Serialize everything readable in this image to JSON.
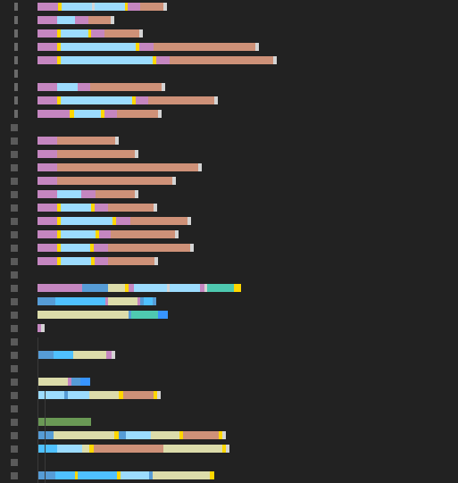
{
  "colors": {
    "background": "#222222",
    "gutter": "#6a6a6a",
    "keyword": "#c586c0",
    "variable": "#9cdcfe",
    "bracket": "#ffd700",
    "string": "#ce9178",
    "punctuation": "#d4d4d4",
    "type": "#4ec9b0",
    "storage": "#569cd6",
    "constant": "#4fc1ff",
    "function": "#dcdcaa",
    "comment": "#6a9955",
    "link": "#3794ff"
  },
  "rows": [
    {
      "marker": "bar",
      "segs": [
        [
          "keyword",
          23
        ],
        [
          "bracket",
          4
        ],
        [
          "variable",
          34
        ],
        [
          "punctuation",
          3
        ],
        [
          "variable",
          34
        ],
        [
          "bracket",
          3
        ],
        [
          "keyword",
          14
        ],
        [
          "string",
          26
        ],
        [
          "punctuation",
          4
        ]
      ]
    },
    {
      "marker": "bar",
      "segs": [
        [
          "keyword",
          22
        ],
        [
          "variable",
          20
        ],
        [
          "keyword",
          15
        ],
        [
          "string",
          25
        ],
        [
          "punctuation",
          4
        ]
      ]
    },
    {
      "marker": "bar",
      "segs": [
        [
          "keyword",
          22
        ],
        [
          "bracket",
          4
        ],
        [
          "variable",
          31
        ],
        [
          "bracket",
          3
        ],
        [
          "keyword",
          15
        ],
        [
          "string",
          39
        ],
        [
          "punctuation",
          4
        ]
      ]
    },
    {
      "marker": "bar",
      "segs": [
        [
          "keyword",
          22
        ],
        [
          "bracket",
          4
        ],
        [
          "variable",
          84
        ],
        [
          "bracket",
          4
        ],
        [
          "keyword",
          16
        ],
        [
          "string",
          114
        ],
        [
          "punctuation",
          4
        ]
      ]
    },
    {
      "marker": "bar",
      "segs": [
        [
          "keyword",
          22
        ],
        [
          "bracket",
          4
        ],
        [
          "variable",
          103
        ],
        [
          "bracket",
          4
        ],
        [
          "keyword",
          15
        ],
        [
          "string",
          116
        ],
        [
          "punctuation",
          4
        ]
      ]
    },
    {
      "marker": "bar",
      "segs": []
    },
    {
      "marker": "bar",
      "segs": [
        [
          "keyword",
          22
        ],
        [
          "variable",
          23
        ],
        [
          "keyword",
          14
        ],
        [
          "string",
          80
        ],
        [
          "punctuation",
          4
        ]
      ]
    },
    {
      "marker": "bar",
      "segs": [
        [
          "keyword",
          22
        ],
        [
          "bracket",
          4
        ],
        [
          "variable",
          80
        ],
        [
          "bracket",
          4
        ],
        [
          "keyword",
          14
        ],
        [
          "string",
          74
        ],
        [
          "punctuation",
          4
        ]
      ]
    },
    {
      "marker": "bar",
      "segs": [
        [
          "keyword",
          36
        ],
        [
          "bracket",
          5
        ],
        [
          "variable",
          30
        ],
        [
          "bracket",
          4
        ],
        [
          "keyword",
          14
        ],
        [
          "string",
          46
        ],
        [
          "punctuation",
          4
        ]
      ]
    },
    {
      "marker": "box",
      "segs": []
    },
    {
      "marker": "box",
      "segs": [
        [
          "keyword",
          22
        ],
        [
          "string",
          65
        ],
        [
          "punctuation",
          4
        ]
      ]
    },
    {
      "marker": "box",
      "segs": [
        [
          "keyword",
          22
        ],
        [
          "string",
          87
        ],
        [
          "punctuation",
          4
        ]
      ]
    },
    {
      "marker": "box",
      "segs": [
        [
          "keyword",
          22
        ],
        [
          "string",
          158
        ],
        [
          "punctuation",
          4
        ]
      ]
    },
    {
      "marker": "box",
      "segs": [
        [
          "keyword",
          22
        ],
        [
          "string",
          129
        ],
        [
          "punctuation",
          4
        ]
      ]
    },
    {
      "marker": "box",
      "segs": [
        [
          "keyword",
          22
        ],
        [
          "variable",
          27
        ],
        [
          "keyword",
          16
        ],
        [
          "string",
          44
        ],
        [
          "punctuation",
          4
        ]
      ]
    },
    {
      "marker": "box",
      "segs": [
        [
          "keyword",
          22
        ],
        [
          "bracket",
          4
        ],
        [
          "variable",
          34
        ],
        [
          "bracket",
          4
        ],
        [
          "keyword",
          15
        ],
        [
          "string",
          51
        ],
        [
          "punctuation",
          4
        ]
      ]
    },
    {
      "marker": "box",
      "segs": [
        [
          "keyword",
          22
        ],
        [
          "bracket",
          4
        ],
        [
          "variable",
          58
        ],
        [
          "bracket",
          4
        ],
        [
          "keyword",
          16
        ],
        [
          "string",
          64
        ],
        [
          "punctuation",
          4
        ]
      ]
    },
    {
      "marker": "box",
      "segs": [
        [
          "keyword",
          22
        ],
        [
          "bracket",
          4
        ],
        [
          "variable",
          39
        ],
        [
          "bracket",
          4
        ],
        [
          "keyword",
          13
        ],
        [
          "string",
          72
        ],
        [
          "punctuation",
          4
        ]
      ]
    },
    {
      "marker": "box",
      "segs": [
        [
          "keyword",
          22
        ],
        [
          "bracket",
          4
        ],
        [
          "variable",
          33
        ],
        [
          "bracket",
          4
        ],
        [
          "keyword",
          16
        ],
        [
          "string",
          92
        ],
        [
          "punctuation",
          4
        ]
      ]
    },
    {
      "marker": "box",
      "segs": [
        [
          "keyword",
          22
        ],
        [
          "bracket",
          4
        ],
        [
          "variable",
          34
        ],
        [
          "bracket",
          4
        ],
        [
          "keyword",
          15
        ],
        [
          "string",
          52
        ],
        [
          "punctuation",
          4
        ]
      ]
    },
    {
      "marker": "box",
      "segs": []
    },
    {
      "marker": "box",
      "segs": [
        [
          "keyword",
          50
        ],
        [
          "storage",
          29
        ],
        [
          "function",
          19
        ],
        [
          "bracket",
          4
        ],
        [
          "keyword",
          6
        ],
        [
          "variable",
          37
        ],
        [
          "punctuation",
          3
        ],
        [
          "variable",
          34
        ],
        [
          "keyword",
          5
        ],
        [
          "punctuation",
          3
        ],
        [
          "type",
          30
        ],
        [
          "bracket",
          8
        ]
      ]
    },
    {
      "marker": "box",
      "segs": [
        [
          "storage",
          20
        ],
        [
          "constant",
          56
        ],
        [
          "keyword",
          3
        ],
        [
          "function",
          33
        ],
        [
          "keyword",
          3
        ],
        [
          "storage",
          4
        ],
        [
          "constant",
          10
        ],
        [
          "storage",
          4
        ]
      ]
    },
    {
      "marker": "box",
      "segs": [
        [
          "function",
          102
        ],
        [
          "storage",
          3
        ],
        [
          "type",
          30
        ],
        [
          "link",
          11
        ]
      ]
    },
    {
      "marker": "box",
      "segs": [
        [
          "keyword",
          4
        ],
        [
          "punctuation",
          4
        ]
      ]
    },
    {
      "marker": "box",
      "segs": []
    },
    {
      "marker": "box",
      "segs": [
        [
          "storage",
          18
        ],
        [
          "constant",
          22
        ],
        [
          "function",
          37
        ],
        [
          "keyword",
          6
        ],
        [
          "punctuation",
          4
        ]
      ]
    },
    {
      "marker": "box",
      "segs": []
    },
    {
      "marker": "box",
      "segs": [
        [
          "function",
          34
        ],
        [
          "keyword",
          4
        ],
        [
          "storage",
          10
        ],
        [
          "link",
          11
        ]
      ]
    },
    {
      "marker": "box",
      "segs": [
        [
          "variable",
          30
        ],
        [
          "storage",
          4
        ],
        [
          "variable",
          24
        ],
        [
          "function",
          33
        ],
        [
          "bracket",
          5
        ],
        [
          "string",
          34
        ],
        [
          "bracket",
          4
        ],
        [
          "punctuation",
          4
        ]
      ]
    },
    {
      "marker": "box",
      "segs": []
    },
    {
      "marker": "box",
      "segs": [
        [
          "comment",
          60
        ]
      ]
    },
    {
      "marker": "box",
      "segs": [
        [
          "storage",
          18
        ],
        [
          "function",
          68
        ],
        [
          "bracket",
          5
        ],
        [
          "storage",
          8
        ],
        [
          "variable",
          28
        ],
        [
          "function",
          32
        ],
        [
          "bracket",
          4
        ],
        [
          "string",
          40
        ],
        [
          "bracket",
          4
        ],
        [
          "punctuation",
          4
        ]
      ]
    },
    {
      "marker": "box",
      "segs": [
        [
          "constant",
          22
        ],
        [
          "variable",
          28
        ],
        [
          "function",
          8
        ],
        [
          "bracket",
          5
        ],
        [
          "string",
          78
        ],
        [
          "function",
          66
        ],
        [
          "bracket",
          4
        ],
        [
          "punctuation",
          4
        ]
      ]
    },
    {
      "marker": "box",
      "segs": []
    },
    {
      "marker": "box",
      "segs": [
        [
          "storage",
          20
        ],
        [
          "constant",
          22
        ],
        [
          "bracket",
          3
        ],
        [
          "constant",
          44
        ],
        [
          "bracket",
          4
        ],
        [
          "variable",
          32
        ],
        [
          "storage",
          4
        ],
        [
          "function",
          64
        ],
        [
          "bracket",
          5
        ]
      ]
    }
  ]
}
